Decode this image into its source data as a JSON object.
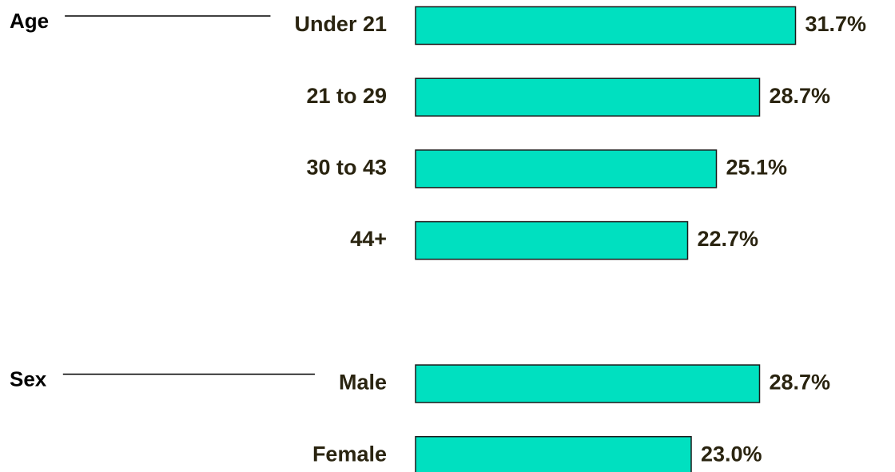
{
  "chart_data": {
    "type": "bar",
    "orientation": "horizontal",
    "color": "#00e0c0",
    "xlim": [
      0,
      35
    ],
    "groups": [
      {
        "name": "Age",
        "categories": [
          "Under 21",
          "21 to 29",
          "30 to 43",
          "44+"
        ],
        "values": [
          31.7,
          28.7,
          25.1,
          22.7
        ],
        "value_labels": [
          "31.7%",
          "28.7%",
          "25.1%",
          "22.7%"
        ]
      },
      {
        "name": "Sex",
        "categories": [
          "Male",
          "Female"
        ],
        "values": [
          28.7,
          23.0
        ],
        "value_labels": [
          "28.7%",
          "23.0%"
        ]
      }
    ]
  }
}
